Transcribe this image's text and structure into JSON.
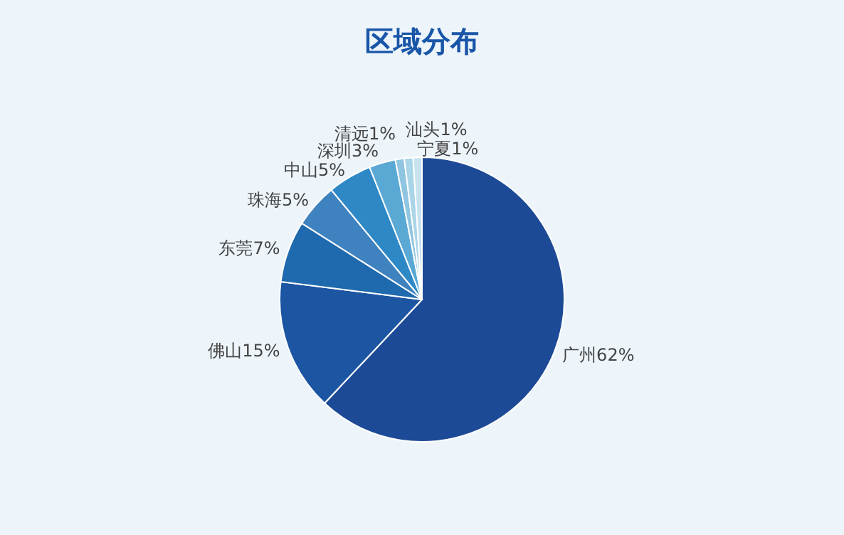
{
  "chart_data": {
    "type": "pie",
    "title": "区域分布",
    "categories": [
      "广州",
      "佛山",
      "东莞",
      "珠海",
      "中山",
      "深圳",
      "清远",
      "汕头",
      "宁夏"
    ],
    "values": [
      62,
      15,
      7,
      5,
      5,
      3,
      1,
      1,
      1
    ],
    "value_labels": [
      "62%",
      "15%",
      "7%",
      "5%",
      "5%",
      "3%",
      "1%",
      "1%",
      "1%"
    ],
    "colors": [
      "#1d4a96",
      "#1c56a3",
      "#1f6aae",
      "#3f82c0",
      "#2e88c6",
      "#5aa8d4",
      "#8fc5e0",
      "#aad4e8",
      "#c6e2ef"
    ],
    "legend": false
  }
}
